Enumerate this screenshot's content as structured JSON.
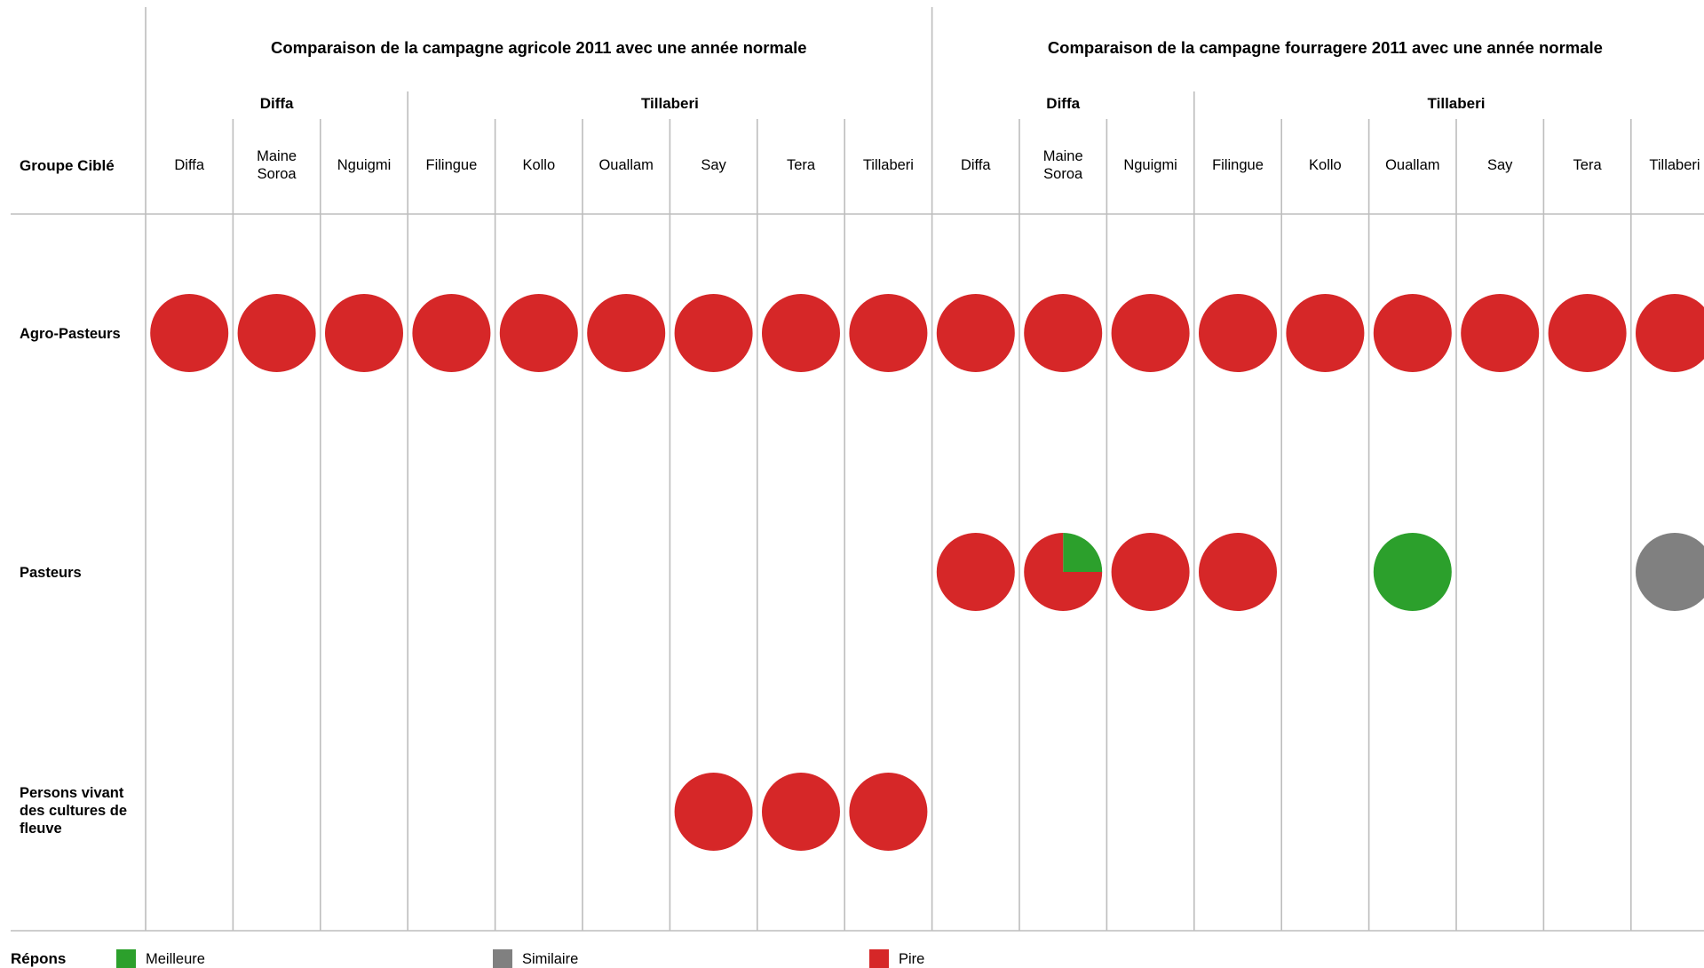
{
  "chart_data": {
    "type": "table",
    "row_header_label": "Groupe Ciblé",
    "groups": [
      {
        "title": "Comparaison de la campagne agricole 2011 avec une année normale",
        "regions": [
          {
            "name": "Diffa",
            "districts": [
              "Diffa",
              "Maine Soroa",
              "Nguigmi"
            ]
          },
          {
            "name": "Tillaberi",
            "districts": [
              "Filingue",
              "Kollo",
              "Ouallam",
              "Say",
              "Tera",
              "Tillaberi"
            ]
          }
        ]
      },
      {
        "title": "Comparaison de la campagne fourragere 2011 avec une année normale",
        "regions": [
          {
            "name": "Diffa",
            "districts": [
              "Diffa",
              "Maine Soroa",
              "Nguigmi"
            ]
          },
          {
            "name": "Tillaberi",
            "districts": [
              "Filingue",
              "Kollo",
              "Ouallam",
              "Say",
              "Tera",
              "Tillaberi"
            ]
          }
        ]
      }
    ],
    "rows": [
      {
        "label": "Agro-Pasteurs",
        "cells": [
          {
            "pire": 1
          },
          {
            "pire": 1
          },
          {
            "pire": 1
          },
          {
            "pire": 1
          },
          {
            "pire": 1
          },
          {
            "pire": 1
          },
          {
            "pire": 1
          },
          {
            "pire": 1
          },
          {
            "pire": 1
          },
          {
            "pire": 1
          },
          {
            "pire": 1
          },
          {
            "pire": 1
          },
          {
            "pire": 1
          },
          {
            "pire": 1
          },
          {
            "pire": 1
          },
          {
            "pire": 1
          },
          {
            "pire": 1
          },
          {
            "pire": 1
          }
        ]
      },
      {
        "label": "Pasteurs",
        "cells": [
          null,
          null,
          null,
          null,
          null,
          null,
          null,
          null,
          null,
          {
            "pire": 1
          },
          {
            "meilleure": 0.25,
            "pire": 0.75
          },
          {
            "pire": 1
          },
          {
            "pire": 1
          },
          null,
          {
            "meilleure": 1
          },
          null,
          null,
          {
            "similaire": 1
          }
        ]
      },
      {
        "label": "Persons vivant des cultures de fleuve",
        "cells": [
          null,
          null,
          null,
          null,
          null,
          null,
          {
            "pire": 1
          },
          {
            "pire": 1
          },
          {
            "pire": 1
          },
          null,
          null,
          null,
          null,
          null,
          null,
          null,
          null,
          null
        ]
      }
    ],
    "legend": {
      "title": "Répons",
      "placement": "bottom",
      "items": [
        {
          "key": "meilleure",
          "label": "Meilleure",
          "color": "#2ca02c"
        },
        {
          "key": "similaire",
          "label": "Similaire",
          "color": "#808080"
        },
        {
          "key": "pire",
          "label": "Pire",
          "color": "#d62728"
        }
      ]
    }
  }
}
